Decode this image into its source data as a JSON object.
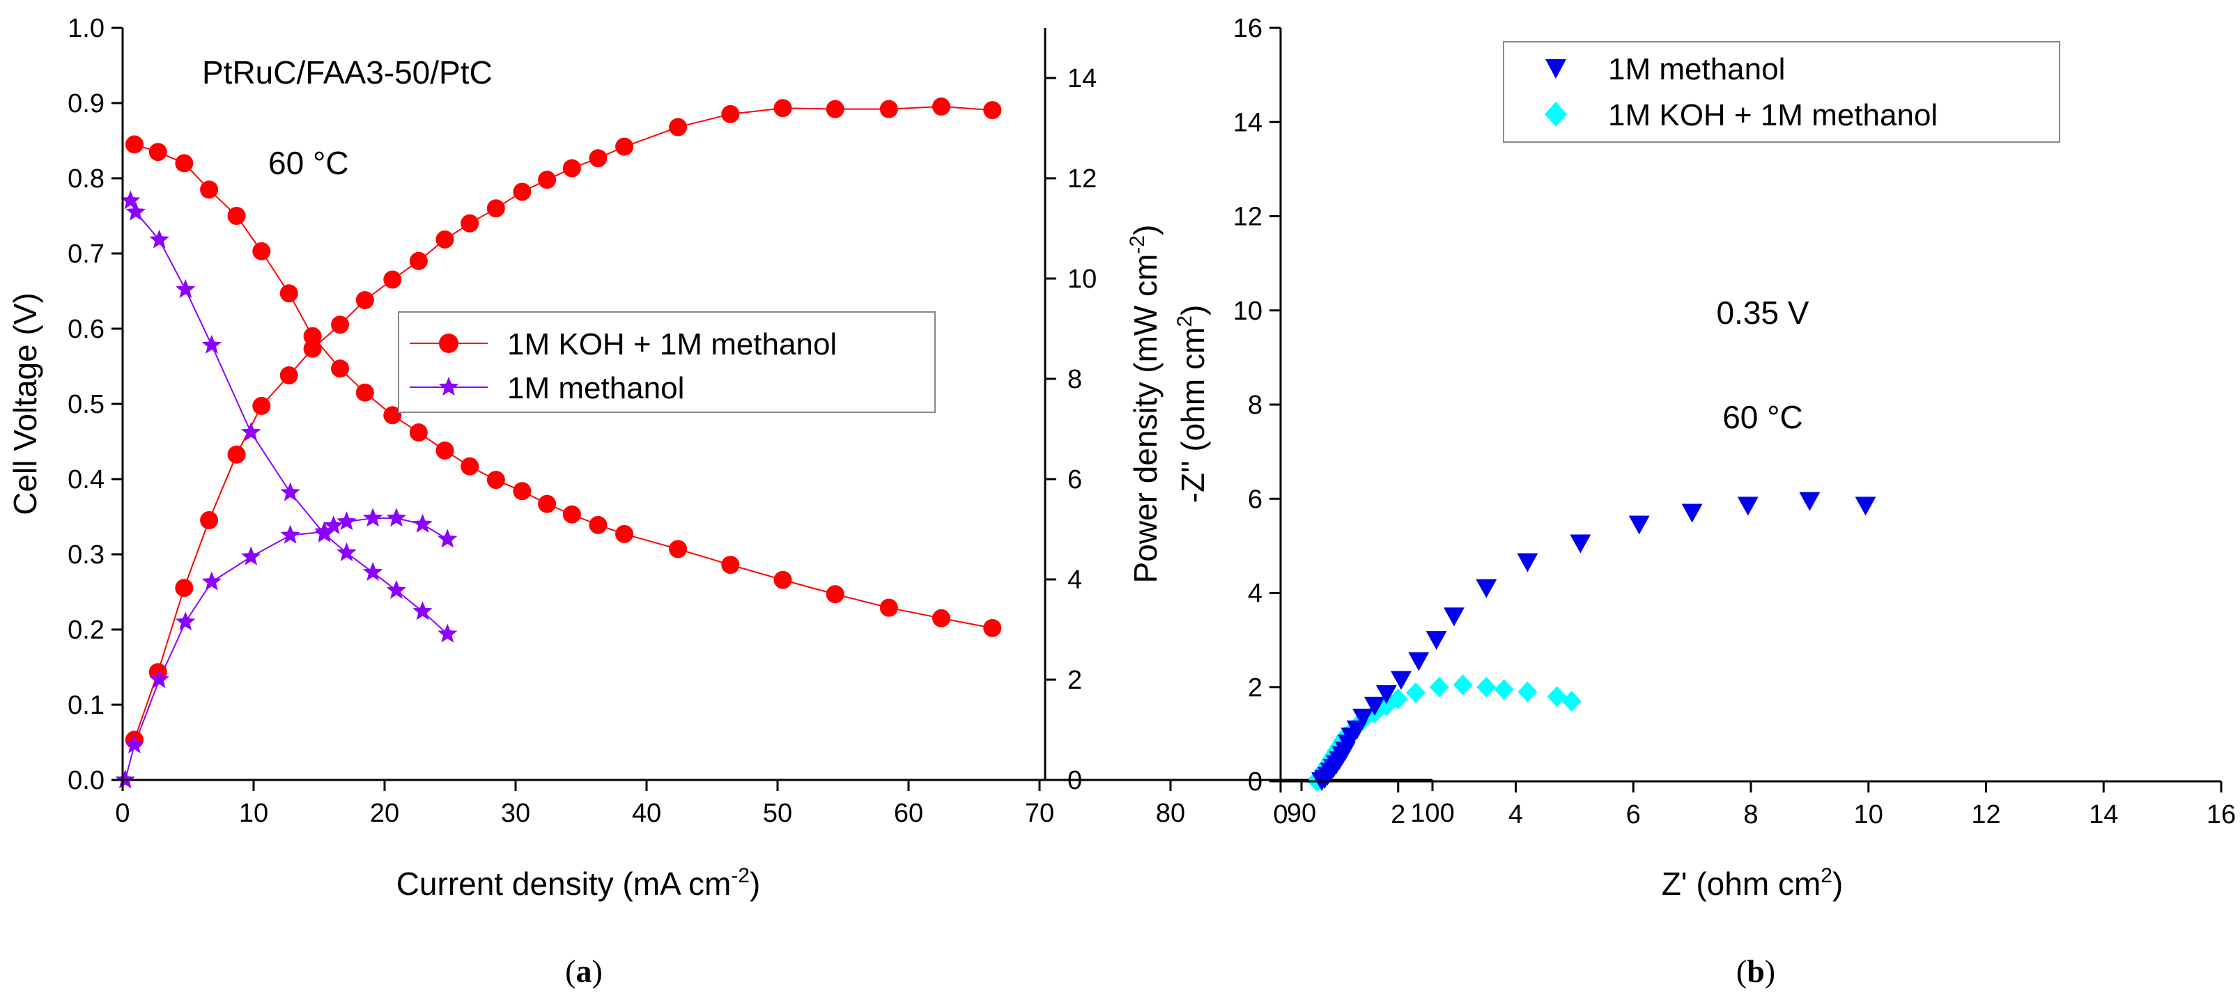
{
  "chart_data": [
    {
      "type": "line",
      "panel": "(a)",
      "panel_letter": "a",
      "xlabel": "Current density (mA cm",
      "xlabel_sup": "-2",
      "xlabel_close": ")",
      "ylabel": "Cell Voltage (V)",
      "y2label": "Power density (mW cm",
      "y2label_sup": "-2",
      "y2label_close": ")",
      "xlim": [
        0,
        100
      ],
      "ylim": [
        0,
        1.0
      ],
      "y2lim": [
        0,
        15
      ],
      "xticks": [
        "0",
        "10",
        "20",
        "30",
        "40",
        "50",
        "60",
        "70",
        "80",
        "90",
        "100"
      ],
      "yticks": [
        "0.0",
        "0.1",
        "0.2",
        "0.3",
        "0.4",
        "0.5",
        "0.6",
        "0.7",
        "0.8",
        "0.9",
        "1.0"
      ],
      "y2ticks": [
        "0",
        "2",
        "4",
        "6",
        "8",
        "10",
        "12",
        "14"
      ],
      "annotations": [
        "PtRuC/FAA3-50/PtC",
        "60 °C"
      ],
      "legend": [
        "1M KOH + 1M methanol",
        "1M methanol"
      ],
      "colors": {
        "koh": "#ff0000",
        "meoh": "#8b00ff"
      },
      "series": [
        {
          "name": "1M KOH + 1M methanol",
          "axis": "voltage",
          "x": [
            0.9,
            2.7,
            4.7,
            6.6,
            8.7,
            10.6,
            12.7,
            14.5,
            16.6,
            18.5,
            20.6,
            22.6,
            24.6,
            26.5,
            28.5,
            30.5,
            32.4,
            34.3,
            36.3,
            38.3,
            42.4,
            46.4,
            50.4,
            54.4,
            58.5,
            62.5,
            66.4
          ],
          "values": [
            0.845,
            0.835,
            0.82,
            0.785,
            0.75,
            0.703,
            0.647,
            0.59,
            0.547,
            0.515,
            0.485,
            0.462,
            0.438,
            0.417,
            0.399,
            0.384,
            0.367,
            0.353,
            0.339,
            0.327,
            0.307,
            0.286,
            0.266,
            0.247,
            0.229,
            0.215,
            0.202
          ]
        },
        {
          "name": "1M KOH + 1M methanol",
          "axis": "power",
          "x": [
            0.9,
            2.7,
            4.7,
            6.6,
            8.7,
            10.6,
            12.7,
            14.5,
            16.6,
            18.5,
            20.6,
            22.6,
            24.6,
            26.5,
            28.5,
            30.5,
            32.4,
            34.3,
            36.3,
            38.3,
            42.4,
            46.4,
            50.4,
            54.4,
            58.5,
            62.5,
            66.4
          ],
          "values": [
            0.8,
            2.15,
            3.83,
            5.18,
            6.49,
            7.46,
            8.07,
            8.6,
            9.08,
            9.57,
            9.98,
            10.35,
            10.78,
            11.1,
            11.4,
            11.73,
            11.97,
            12.2,
            12.4,
            12.63,
            13.02,
            13.28,
            13.4,
            13.38,
            13.38,
            13.43,
            13.36
          ]
        },
        {
          "name": "1M methanol",
          "axis": "voltage",
          "x": [
            0.6,
            1.0,
            2.8,
            4.8,
            6.8,
            9.8,
            12.8,
            15.4,
            17.1,
            19.1,
            20.9,
            22.9,
            24.8
          ],
          "values": [
            0.77,
            0.755,
            0.718,
            0.652,
            0.578,
            0.462,
            0.382,
            0.327,
            0.302,
            0.276,
            0.252,
            0.224,
            0.194
          ]
        },
        {
          "name": "1M methanol",
          "axis": "power",
          "x": [
            0.2,
            0.9,
            2.8,
            4.8,
            6.8,
            9.8,
            12.8,
            15.4,
            16.1,
            17.1,
            19.1,
            20.9,
            22.9,
            24.8
          ],
          "values": [
            0.0,
            0.7,
            2.0,
            3.15,
            3.95,
            4.45,
            4.88,
            4.95,
            5.07,
            5.15,
            5.22,
            5.22,
            5.1,
            4.8
          ]
        }
      ]
    },
    {
      "type": "scatter",
      "panel": "(b)",
      "panel_letter": "b",
      "xlabel": "Z' (ohm cm",
      "xlabel_sup": "2",
      "xlabel_close": ")",
      "ylabel": "-Z'' (ohm cm",
      "ylabel_sup": "2",
      "ylabel_close": ")",
      "xlim": [
        0,
        16
      ],
      "ylim": [
        0,
        16
      ],
      "xticks": [
        "0",
        "2",
        "4",
        "6",
        "8",
        "10",
        "12",
        "14",
        "16"
      ],
      "yticks": [
        "0",
        "2",
        "4",
        "6",
        "8",
        "10",
        "12",
        "14",
        "16"
      ],
      "annotations": [
        "0.35 V",
        "60 °C"
      ],
      "legend": [
        "1M methanol",
        "1M KOH + 1M methanol"
      ],
      "colors": {
        "meoh": "#0000ee",
        "koh": "#00ffff"
      },
      "series": [
        {
          "name": "1M methanol",
          "marker": "triangle-down",
          "x": [
            0.7,
            0.75,
            0.8,
            0.85,
            0.9,
            0.95,
            1.0,
            1.05,
            1.1,
            1.15,
            1.2,
            1.3,
            1.4,
            1.6,
            1.8,
            2.05,
            2.35,
            2.65,
            2.95,
            3.5,
            4.2,
            5.1,
            6.1,
            7.0,
            7.95,
            9.0,
            9.95
          ],
          "values": [
            0.0,
            0.05,
            0.12,
            0.2,
            0.28,
            0.36,
            0.45,
            0.55,
            0.65,
            0.8,
            0.95,
            1.1,
            1.35,
            1.6,
            1.85,
            2.15,
            2.55,
            3.0,
            3.5,
            4.1,
            4.65,
            5.05,
            5.45,
            5.7,
            5.85,
            5.95,
            5.85
          ]
        },
        {
          "name": "1M KOH + 1M methanol",
          "marker": "diamond",
          "x": [
            0.62,
            0.65,
            0.7,
            0.75,
            0.8,
            0.85,
            0.9,
            0.95,
            1.0,
            1.05,
            1.1,
            1.2,
            1.3,
            1.4,
            1.6,
            1.8,
            2.0,
            2.3,
            2.7,
            3.1,
            3.5,
            3.8,
            4.2,
            4.7,
            4.95
          ],
          "values": [
            0.0,
            0.07,
            0.15,
            0.25,
            0.35,
            0.45,
            0.55,
            0.65,
            0.75,
            0.85,
            0.95,
            1.05,
            1.18,
            1.3,
            1.45,
            1.6,
            1.75,
            1.88,
            2.0,
            2.05,
            2.0,
            1.95,
            1.9,
            1.8,
            1.7
          ]
        }
      ]
    }
  ]
}
